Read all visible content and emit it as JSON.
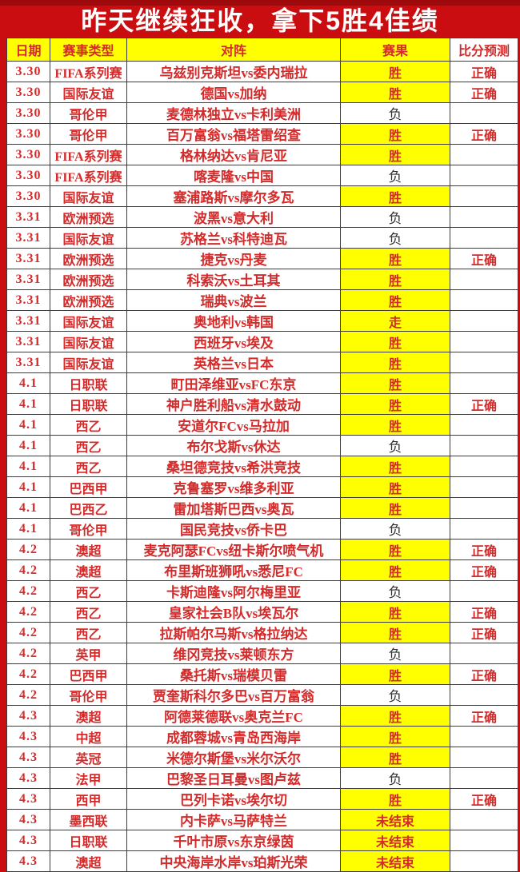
{
  "banner": {
    "title": "昨天继续狂收，拿下5胜4佳绩"
  },
  "colors": {
    "banner_red": "#ca0d10",
    "banner_red_dark": "#9e090b",
    "text_red": "#d42a2a",
    "highlight_yellow": "#ffff00",
    "border_gray": "#3d3d3d",
    "dark_text": "#2e2e2e",
    "cell_white": "#ffffff"
  },
  "table": {
    "headers": [
      "日期",
      "赛事类型",
      "对阵",
      "赛果",
      "比分预测"
    ],
    "rows": [
      {
        "date": "3.30",
        "league": "FIFA系列赛",
        "match": "乌兹别克斯坦vs委内瑞拉",
        "result": "胜",
        "result_highlight": true,
        "prediction": "正确"
      },
      {
        "date": "3.30",
        "league": "国际友谊",
        "match": "德国vs加纳",
        "result": "胜",
        "result_highlight": true,
        "prediction": "正确"
      },
      {
        "date": "3.30",
        "league": "哥伦甲",
        "match": "麦德林独立vs卡利美洲",
        "result": "负",
        "result_highlight": false,
        "prediction": ""
      },
      {
        "date": "3.30",
        "league": "哥伦甲",
        "match": "百万富翁vs福塔雷绍查",
        "result": "胜",
        "result_highlight": true,
        "prediction": "正确"
      },
      {
        "date": "3.30",
        "league": "FIFA系列赛",
        "match": "格林纳达vs肯尼亚",
        "result": "胜",
        "result_highlight": true,
        "prediction": ""
      },
      {
        "date": "3.30",
        "league": "FIFA系列赛",
        "match": "喀麦隆vs中国",
        "result": "负",
        "result_highlight": false,
        "prediction": ""
      },
      {
        "date": "3.30",
        "league": "国际友谊",
        "match": "塞浦路斯vs摩尔多瓦",
        "result": "胜",
        "result_highlight": true,
        "prediction": ""
      },
      {
        "date": "3.31",
        "league": "欧洲预选",
        "match": "波黑vs意大利",
        "result": "负",
        "result_highlight": false,
        "prediction": ""
      },
      {
        "date": "3.31",
        "league": "国际友谊",
        "match": "苏格兰vs科特迪瓦",
        "result": "负",
        "result_highlight": false,
        "prediction": ""
      },
      {
        "date": "3.31",
        "league": "欧洲预选",
        "match": "捷克vs丹麦",
        "result": "胜",
        "result_highlight": true,
        "prediction": "正确"
      },
      {
        "date": "3.31",
        "league": "欧洲预选",
        "match": "科索沃vs土耳其",
        "result": "胜",
        "result_highlight": true,
        "prediction": ""
      },
      {
        "date": "3.31",
        "league": "欧洲预选",
        "match": "瑞典vs波兰",
        "result": "胜",
        "result_highlight": true,
        "prediction": ""
      },
      {
        "date": "3.31",
        "league": "国际友谊",
        "match": "奥地利vs韩国",
        "result": "走",
        "result_highlight": true,
        "prediction": ""
      },
      {
        "date": "3.31",
        "league": "国际友谊",
        "match": "西班牙vs埃及",
        "result": "胜",
        "result_highlight": true,
        "prediction": ""
      },
      {
        "date": "3.31",
        "league": "国际友谊",
        "match": "英格兰vs日本",
        "result": "胜",
        "result_highlight": true,
        "prediction": ""
      },
      {
        "date": "4.1",
        "league": "日职联",
        "match": "町田泽维亚vsFC东京",
        "result": "胜",
        "result_highlight": true,
        "prediction": ""
      },
      {
        "date": "4.1",
        "league": "日职联",
        "match": "神户胜利船vs清水鼓动",
        "result": "胜",
        "result_highlight": true,
        "prediction": "正确"
      },
      {
        "date": "4.1",
        "league": "西乙",
        "match": "安道尔FCvs马拉加",
        "result": "胜",
        "result_highlight": true,
        "prediction": ""
      },
      {
        "date": "4.1",
        "league": "西乙",
        "match": "布尔戈斯vs休达",
        "result": "负",
        "result_highlight": false,
        "prediction": ""
      },
      {
        "date": "4.1",
        "league": "西乙",
        "match": "桑坦德竞技vs希洪竞技",
        "result": "胜",
        "result_highlight": true,
        "prediction": ""
      },
      {
        "date": "4.1",
        "league": "巴西甲",
        "match": "克鲁塞罗vs维多利亚",
        "result": "胜",
        "result_highlight": true,
        "prediction": ""
      },
      {
        "date": "4.1",
        "league": "巴西乙",
        "match": "雷加塔斯巴西vs奥瓦",
        "result": "胜",
        "result_highlight": true,
        "prediction": ""
      },
      {
        "date": "4.1",
        "league": "哥伦甲",
        "match": "国民竞技vs侨卡巴",
        "result": "负",
        "result_highlight": false,
        "prediction": ""
      },
      {
        "date": "4.2",
        "league": "澳超",
        "match": "麦克阿瑟FCvs纽卡斯尔喷气机",
        "result": "胜",
        "result_highlight": true,
        "prediction": "正确"
      },
      {
        "date": "4.2",
        "league": "澳超",
        "match": "布里斯班狮吼vs悉尼FC",
        "result": "胜",
        "result_highlight": true,
        "prediction": "正确"
      },
      {
        "date": "4.2",
        "league": "西乙",
        "match": "卡斯迪隆vs阿尔梅里亚",
        "result": "负",
        "result_highlight": false,
        "prediction": ""
      },
      {
        "date": "4.2",
        "league": "西乙",
        "match": "皇家社会B队vs埃瓦尔",
        "result": "胜",
        "result_highlight": true,
        "prediction": "正确"
      },
      {
        "date": "4.2",
        "league": "西乙",
        "match": "拉斯帕尔马斯vs格拉纳达",
        "result": "胜",
        "result_highlight": true,
        "prediction": "正确"
      },
      {
        "date": "4.2",
        "league": "英甲",
        "match": "维冈竞技vs莱顿东方",
        "result": "负",
        "result_highlight": false,
        "prediction": ""
      },
      {
        "date": "4.2",
        "league": "巴西甲",
        "match": "桑托斯vs瑞模贝雷",
        "result": "胜",
        "result_highlight": true,
        "prediction": "正确"
      },
      {
        "date": "4.2",
        "league": "哥伦甲",
        "match": "贾奎斯科尔多巴vs百万富翁",
        "result": "负",
        "result_highlight": false,
        "prediction": ""
      },
      {
        "date": "4.3",
        "league": "澳超",
        "match": "阿德莱德联vs奥克兰FC",
        "result": "胜",
        "result_highlight": true,
        "prediction": "正确"
      },
      {
        "date": "4.3",
        "league": "中超",
        "match": "成都蓉城vs青岛西海岸",
        "result": "胜",
        "result_highlight": true,
        "prediction": ""
      },
      {
        "date": "4.3",
        "league": "英冠",
        "match": "米德尔斯堡vs米尔沃尔",
        "result": "胜",
        "result_highlight": true,
        "prediction": ""
      },
      {
        "date": "4.3",
        "league": "法甲",
        "match": "巴黎圣日耳曼vs图卢兹",
        "result": "负",
        "result_highlight": false,
        "prediction": ""
      },
      {
        "date": "4.3",
        "league": "西甲",
        "match": "巴列卡诺vs埃尔切",
        "result": "胜",
        "result_highlight": true,
        "prediction": "正确"
      },
      {
        "date": "4.3",
        "league": "墨西联",
        "match": "内卡萨vs马萨特兰",
        "result": "未结束",
        "result_highlight": true,
        "prediction": ""
      },
      {
        "date": "4.3",
        "league": "日职联",
        "match": "千叶市原vs东京绿茵",
        "result": "未结束",
        "result_highlight": true,
        "prediction": ""
      },
      {
        "date": "4.3",
        "league": "澳超",
        "match": "中央海岸水岸vs珀斯光荣",
        "result": "未结束",
        "result_highlight": true,
        "prediction": ""
      }
    ]
  }
}
